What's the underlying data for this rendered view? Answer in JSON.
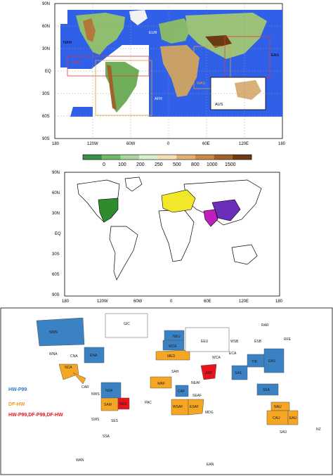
{
  "panel1": {
    "lat_ticks": [
      "90N",
      "60N",
      "30N",
      "EQ",
      "30S",
      "60S",
      "90S"
    ],
    "lon_ticks": [
      "180",
      "120W",
      "60W",
      "0",
      "60E",
      "120E",
      "180"
    ],
    "domains": [
      "NAM",
      "CAM",
      "SAM",
      "EUR",
      "AFR",
      "WAS",
      "EAS",
      "AUS"
    ],
    "colorbar_ticks": [
      "0",
      "100",
      "200",
      "250",
      "500",
      "800",
      "1000",
      "1500"
    ],
    "colorbar_colors": [
      "#3b8f47",
      "#6fb86a",
      "#a8d59a",
      "#d9eecb",
      "#f5deb3",
      "#e0b070",
      "#c88a45",
      "#a0622b",
      "#6b3a16"
    ]
  },
  "panel2": {
    "lat_ticks": [
      "90N",
      "60N",
      "30N",
      "EQ",
      "30S",
      "60S",
      "90S"
    ],
    "lon_ticks": [
      "180",
      "120W",
      "60W",
      "0",
      "60E",
      "120E",
      "180"
    ],
    "region_colors": {
      "north_america": "#2e8b2e",
      "europe": "#f2e829",
      "west_asia": "#c01fc0",
      "east_asia": "#6a2eb8"
    }
  },
  "panel3": {
    "regions": [
      "NWN",
      "GIC",
      "NEU",
      "RAR",
      "WNA",
      "CNA",
      "ENA",
      "WCE",
      "EEU",
      "WSB",
      "ESB",
      "RFE",
      "NCA",
      "MED",
      "WCA",
      "ECA",
      "TIB",
      "SAH",
      "ARP",
      "SAS",
      "EAS",
      "CAR",
      "WAF",
      "NEAF",
      "SEA",
      "NWS",
      "NSA",
      "CAF",
      "SEAF",
      "SAM",
      "NES",
      "PAC",
      "WSAF",
      "ESAF",
      "NAU",
      "MDG",
      "CAU",
      "EAU",
      "SWS",
      "SES",
      "SAU",
      "NZ",
      "SSA",
      "WAN",
      "EAN"
    ],
    "legend": [
      {
        "text": "HW-P99",
        "color": "#2f78c4"
      },
      {
        "text": "DF-HW",
        "color": "#f39c12"
      },
      {
        "text": "HW-P99,DF-P99,DF-HW",
        "color": "#e8141b"
      }
    ],
    "fill_colors": {
      "blue": "#3b82c4",
      "orange": "#f5a623",
      "red": "#e8141b"
    }
  }
}
